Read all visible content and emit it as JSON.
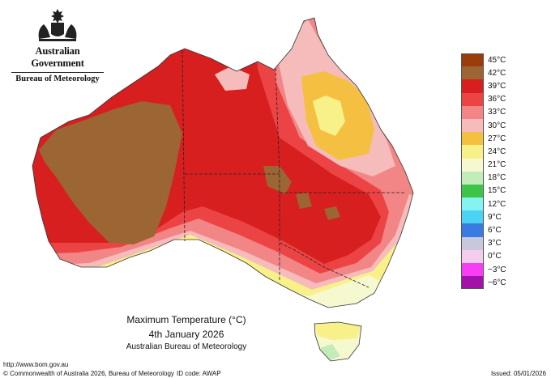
{
  "header": {
    "government": "Australian Government",
    "bureau": "Bureau of Meteorology",
    "crest_icon": "coat-of-arms-icon"
  },
  "legend": [
    {
      "label": "45°C",
      "color": "#9c3c0a"
    },
    {
      "label": "42°C",
      "color": "#9b6534"
    },
    {
      "label": "39°C",
      "color": "#d81f1f"
    },
    {
      "label": "36°C",
      "color": "#ec4444"
    },
    {
      "label": "33°C",
      "color": "#f28585"
    },
    {
      "label": "30°C",
      "color": "#f6bcbc"
    },
    {
      "label": "27°C",
      "color": "#f5c042"
    },
    {
      "label": "24°C",
      "color": "#f8f088"
    },
    {
      "label": "21°C",
      "color": "#f6f8cf"
    },
    {
      "label": "18°C",
      "color": "#c3ecbb"
    },
    {
      "label": "15°C",
      "color": "#3dc54a"
    },
    {
      "label": "12°C",
      "color": "#86f3f0"
    },
    {
      "label": "9°C",
      "color": "#4cd2f4"
    },
    {
      "label": "6°C",
      "color": "#3a7be2"
    },
    {
      "label": "3°C",
      "color": "#c8c8dc"
    },
    {
      "label": "0°C",
      "color": "#f4ccf0"
    },
    {
      "label": "−3°C",
      "color": "#f83ef5"
    },
    {
      "label": "−6°C",
      "color": "#a212a8"
    }
  ],
  "caption": {
    "title": "Maximum Temperature (°C)",
    "date": "4th January 2026",
    "agency": "Australian Bureau of Meteorology"
  },
  "footer": {
    "url": "http://www.bom.gov.au",
    "copyright": "© Commonwealth of Australia 2026, Bureau of Meteorology",
    "id_code": "ID code: AWAP",
    "issued": "Issued: 05/01/2026"
  }
}
